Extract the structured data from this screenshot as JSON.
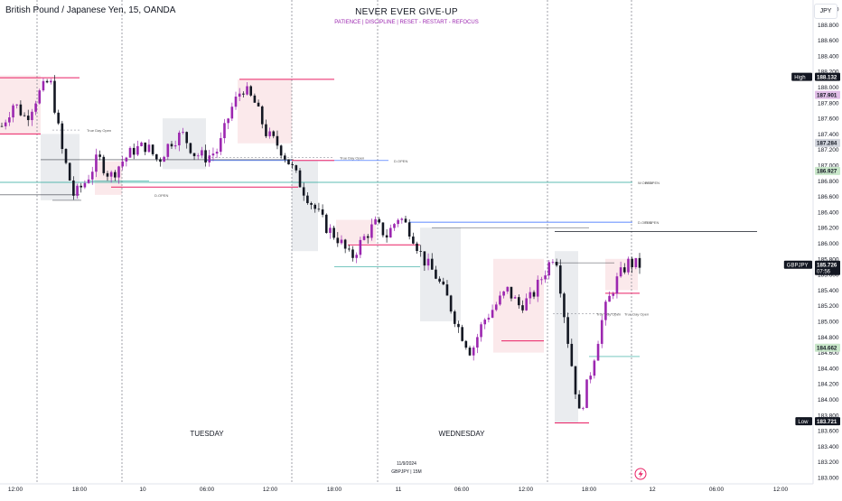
{
  "header": {
    "symbol_title": "British Pound / Japanese Yen, 15, OANDA",
    "banner_title": "NEVER EVER GIVE-UP",
    "banner_subtitle": "PATIENCE   |   DISCIPLINE   |   RESET - RESTART - REFOCUS",
    "currency_button": "JPY"
  },
  "colors": {
    "up": "#9c27b0",
    "down": "#131722",
    "premium_zone": "#f8d7da",
    "discount_zone": "#d1d4dc",
    "pink_line": "#e91e63",
    "green_line": "#26a69a",
    "blue_line": "#2962ff",
    "black_line": "#131722",
    "session_line": "#787b86"
  },
  "chart_data": {
    "type": "candlestick",
    "title": "British Pound / Japanese Yen, 15, OANDA",
    "ylim": [
      183.0,
      189.0
    ],
    "y_ticks": [
      "189.000",
      "188.800",
      "188.600",
      "188.400",
      "188.200",
      "188.000",
      "187.800",
      "187.600",
      "187.400",
      "187.200",
      "187.000",
      "186.800",
      "186.600",
      "186.400",
      "186.200",
      "186.000",
      "185.800",
      "185.600",
      "185.400",
      "185.200",
      "185.000",
      "184.800",
      "184.600",
      "184.400",
      "184.200",
      "184.000",
      "183.800",
      "183.600",
      "183.400",
      "183.200",
      "183.000"
    ],
    "x_ticks": [
      "12:00",
      "18:00",
      "10",
      "06:00",
      "12:00",
      "18:00",
      "11",
      "06:00",
      "12:00",
      "18:00",
      "12",
      "06:00",
      "12:00"
    ],
    "day_labels": [
      "TUESDAY",
      "WEDNESDAY"
    ],
    "date_stamp": "11/9/2024",
    "interval_stamp": "GBPJPY  |  15M",
    "close_path": [
      187.5,
      187.8,
      187.6,
      187.9,
      188.1,
      187.2,
      186.6,
      186.8,
      187.1,
      186.85,
      187.05,
      187.2,
      187.25,
      187.05,
      187.3,
      187.4,
      187.15,
      187.1,
      187.2,
      187.7,
      188.0,
      187.8,
      187.4,
      187.25,
      187.0,
      186.7,
      186.45,
      186.2,
      186.05,
      185.8,
      186.05,
      186.25,
      186.1,
      186.35,
      186.15,
      185.8,
      185.6,
      185.3,
      184.9,
      184.6,
      185.0,
      185.2,
      185.4,
      185.2,
      185.3,
      185.6,
      185.9,
      184.8,
      183.8,
      184.4,
      185.1,
      185.5,
      185.75,
      185.72
    ],
    "candle_count": 170,
    "price_labels": [
      {
        "tag": "High",
        "value": "188.132"
      },
      {
        "tag": "",
        "value": "187.901"
      },
      {
        "tag": "",
        "value": "187.284"
      },
      {
        "tag": "",
        "value": "186.927"
      },
      {
        "tag": "GBPJPY",
        "value": "185.726",
        "countdown": "07:56"
      },
      {
        "tag": "",
        "value": "184.662"
      },
      {
        "tag": "Low",
        "value": "183.721"
      }
    ],
    "level_lines": [
      {
        "label": "True Day Open",
        "value": 187.45
      },
      {
        "label": "D.OPEN",
        "value": 187.06
      },
      {
        "label": "True Day Open",
        "value": 187.1
      },
      {
        "label": "D.OPEN",
        "value": 186.62
      },
      {
        "label": "W.OPEN",
        "value": 186.78
      },
      {
        "label": "D.OPEN",
        "value": 186.27
      },
      {
        "label": "",
        "value": 186.15
      },
      {
        "label": "True Day Open",
        "value": 185.1
      }
    ]
  }
}
